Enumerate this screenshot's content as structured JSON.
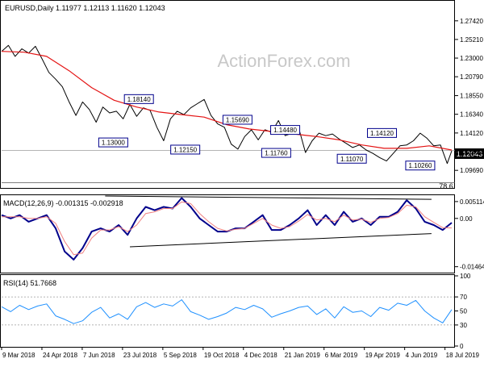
{
  "chart_data": {
    "type": "line",
    "price_panel": {
      "header": "EURUSD,Daily  1.11977 1.12113 1.11620 1.12043",
      "watermark": "ActionForex.com",
      "ylim": [
        1.077,
        1.2855
      ],
      "yticks": [
        "1.27420",
        "1.25210",
        "1.23000",
        "1.20790",
        "1.18550",
        "1.16340",
        "1.14120",
        "1.11910",
        "1.09690"
      ],
      "current_price": "1.12043",
      "current_value": 1.12043,
      "fib_label": "78.6",
      "fib_value": 1.0824,
      "series": [
        {
          "name": "Price",
          "x": [
            0,
            0.015,
            0.03,
            0.045,
            0.06,
            0.075,
            0.09,
            0.105,
            0.12,
            0.135,
            0.15,
            0.165,
            0.18,
            0.195,
            0.21,
            0.225,
            0.24,
            0.255,
            0.27,
            0.285,
            0.3,
            0.315,
            0.33,
            0.345,
            0.36,
            0.375,
            0.39,
            0.405,
            0.42,
            0.435,
            0.45,
            0.465,
            0.48,
            0.495,
            0.51,
            0.525,
            0.54,
            0.555,
            0.57,
            0.585,
            0.6,
            0.615,
            0.63,
            0.645,
            0.66,
            0.675,
            0.69,
            0.705,
            0.72,
            0.735,
            0.75,
            0.765,
            0.78,
            0.795,
            0.81,
            0.825,
            0.84,
            0.855,
            0.87,
            0.885,
            0.9,
            0.915,
            0.93,
            0.945,
            0.96,
            0.975,
            0.99,
            1.0
          ],
          "values": [
            1.238,
            1.245,
            1.232,
            1.241,
            1.236,
            1.244,
            1.229,
            1.213,
            1.205,
            1.196,
            1.178,
            1.162,
            1.178,
            1.169,
            1.154,
            1.172,
            1.165,
            1.167,
            1.158,
            1.175,
            1.161,
            1.171,
            1.168,
            1.148,
            1.132,
            1.158,
            1.167,
            1.163,
            1.171,
            1.176,
            1.181,
            1.162,
            1.152,
            1.148,
            1.128,
            1.122,
            1.137,
            1.145,
            1.133,
            1.145,
            1.142,
            1.156,
            1.138,
            1.141,
            1.147,
            1.118,
            1.132,
            1.141,
            1.138,
            1.14,
            1.134,
            1.129,
            1.124,
            1.127,
            1.121,
            1.117,
            1.112,
            1.108,
            1.117,
            1.126,
            1.127,
            1.132,
            1.141,
            1.135,
            1.126,
            1.127,
            1.105,
            1.12
          ]
        },
        {
          "name": "MA",
          "x": [
            0,
            0.05,
            0.1,
            0.15,
            0.2,
            0.25,
            0.3,
            0.35,
            0.4,
            0.45,
            0.5,
            0.55,
            0.6,
            0.65,
            0.7,
            0.75,
            0.8,
            0.85,
            0.9,
            0.95,
            1.0
          ],
          "values": [
            1.238,
            1.237,
            1.232,
            1.215,
            1.195,
            1.18,
            1.172,
            1.166,
            1.163,
            1.16,
            1.151,
            1.146,
            1.143,
            1.14,
            1.137,
            1.133,
            1.127,
            1.123,
            1.123,
            1.126,
            1.121
          ]
        }
      ],
      "annotations": [
        {
          "text": "1.18140",
          "x": 0.305,
          "y": 1.1814
        },
        {
          "text": "1.13000",
          "x": 0.248,
          "y": 1.13
        },
        {
          "text": "1.12150",
          "x": 0.408,
          "y": 1.1215
        },
        {
          "text": "1.15690",
          "x": 0.524,
          "y": 1.1569
        },
        {
          "text": "1.14480",
          "x": 0.63,
          "y": 1.1448
        },
        {
          "text": "1.11760",
          "x": 0.61,
          "y": 1.1176
        },
        {
          "text": "1.11070",
          "x": 0.778,
          "y": 1.1107
        },
        {
          "text": "1.14120",
          "x": 0.845,
          "y": 1.1412
        },
        {
          "text": "1.10260",
          "x": 0.93,
          "y": 1.1026
        }
      ]
    },
    "macd_panel": {
      "header": "MACD(12,26,9) -0.001315 -0.002918",
      "ylim": [
        -0.0162,
        0.0068
      ],
      "yticks": [
        "0.005114",
        "0.00",
        "-0.014647"
      ],
      "series": [
        {
          "name": "MACD",
          "x": [
            0,
            0.02,
            0.04,
            0.06,
            0.08,
            0.1,
            0.12,
            0.14,
            0.16,
            0.18,
            0.2,
            0.22,
            0.24,
            0.26,
            0.28,
            0.3,
            0.32,
            0.34,
            0.36,
            0.38,
            0.4,
            0.42,
            0.44,
            0.46,
            0.48,
            0.5,
            0.52,
            0.54,
            0.56,
            0.58,
            0.6,
            0.62,
            0.64,
            0.66,
            0.68,
            0.7,
            0.72,
            0.74,
            0.76,
            0.78,
            0.8,
            0.82,
            0.84,
            0.86,
            0.88,
            0.9,
            0.92,
            0.94,
            0.96,
            0.98,
            1.0
          ],
          "values": [
            0.001,
            0.0,
            0.001,
            -0.001,
            0.0,
            0.001,
            -0.003,
            -0.01,
            -0.0125,
            -0.009,
            -0.004,
            -0.003,
            -0.004,
            -0.002,
            -0.005,
            0.0,
            0.0035,
            0.0025,
            0.0035,
            0.003,
            0.0062,
            0.0035,
            0.0,
            -0.002,
            -0.004,
            -0.004,
            -0.003,
            -0.003,
            -0.001,
            0.001,
            -0.0035,
            -0.0035,
            -0.002,
            0.0,
            0.0025,
            -0.002,
            0.001,
            -0.002,
            0.002,
            -0.001,
            0.0,
            -0.002,
            0.0005,
            0.0005,
            0.002,
            0.0055,
            0.003,
            -0.001,
            -0.002,
            -0.0035,
            -0.0013
          ]
        },
        {
          "name": "Signal",
          "x": [
            0,
            0.02,
            0.04,
            0.06,
            0.08,
            0.1,
            0.12,
            0.14,
            0.16,
            0.18,
            0.2,
            0.22,
            0.24,
            0.26,
            0.28,
            0.3,
            0.32,
            0.34,
            0.36,
            0.38,
            0.4,
            0.42,
            0.44,
            0.46,
            0.48,
            0.5,
            0.52,
            0.54,
            0.56,
            0.58,
            0.6,
            0.62,
            0.64,
            0.66,
            0.68,
            0.7,
            0.72,
            0.74,
            0.76,
            0.78,
            0.8,
            0.82,
            0.84,
            0.86,
            0.88,
            0.9,
            0.92,
            0.94,
            0.96,
            0.98,
            1.0
          ],
          "values": [
            0.0005,
            0.0005,
            0.0005,
            0.0,
            0.0,
            0.0005,
            -0.0015,
            -0.007,
            -0.011,
            -0.0105,
            -0.006,
            -0.0035,
            -0.0035,
            -0.0025,
            -0.004,
            -0.002,
            0.0015,
            0.002,
            0.003,
            0.003,
            0.005,
            0.0045,
            0.0015,
            -0.001,
            -0.003,
            -0.0038,
            -0.0033,
            -0.003,
            -0.0015,
            0.0,
            -0.002,
            -0.003,
            -0.0025,
            -0.0008,
            0.0012,
            -0.0005,
            0.0,
            -0.001,
            0.001,
            -0.0005,
            -0.0002,
            -0.0012,
            0.0,
            0.0003,
            0.0015,
            0.004,
            0.0035,
            0.0005,
            -0.0012,
            -0.0028,
            -0.0029
          ]
        }
      ],
      "trendlines": [
        {
          "x1": 0.23,
          "y1": 0.0068,
          "x2": 0.955,
          "y2": 0.0058
        },
        {
          "x1": 0.285,
          "y1": -0.0086,
          "x2": 0.955,
          "y2": -0.0046
        }
      ]
    },
    "rsi_panel": {
      "header": "RSI(14) 51.7668",
      "ylim": [
        0,
        100
      ],
      "yticks": [
        "100",
        "70",
        "50",
        "30",
        "0"
      ],
      "guide_levels": [
        70,
        30
      ],
      "series": [
        {
          "name": "RSI",
          "x": [
            0,
            0.02,
            0.04,
            0.06,
            0.08,
            0.1,
            0.12,
            0.14,
            0.16,
            0.18,
            0.2,
            0.22,
            0.24,
            0.26,
            0.28,
            0.3,
            0.32,
            0.34,
            0.36,
            0.38,
            0.4,
            0.42,
            0.44,
            0.46,
            0.48,
            0.5,
            0.52,
            0.54,
            0.56,
            0.58,
            0.6,
            0.62,
            0.64,
            0.66,
            0.68,
            0.7,
            0.72,
            0.74,
            0.76,
            0.78,
            0.8,
            0.82,
            0.84,
            0.86,
            0.88,
            0.9,
            0.92,
            0.94,
            0.96,
            0.98,
            1.0
          ],
          "values": [
            56,
            49,
            58,
            52,
            57,
            60,
            43,
            38,
            32,
            36,
            48,
            55,
            40,
            46,
            38,
            56,
            62,
            55,
            60,
            57,
            66,
            49,
            44,
            38,
            42,
            47,
            55,
            52,
            58,
            53,
            41,
            46,
            50,
            55,
            57,
            45,
            53,
            40,
            56,
            48,
            50,
            42,
            55,
            51,
            61,
            58,
            65,
            50,
            40,
            33,
            52
          ]
        }
      ]
    },
    "x_axis": {
      "tick_labels": [
        "9 Mar 2018",
        "24 Apr 2018",
        "7 Jun 2018",
        "23 Jul 2018",
        "5 Sep 2018",
        "19 Oct 2018",
        "4 Dec 2018",
        "21 Jan 2019",
        "6 Mar 2019",
        "19 Apr 2019",
        "4 Jun 2019",
        "18 Jul 2019"
      ]
    },
    "colors": {
      "price": "#000000",
      "ma": "#e41414",
      "macd": "#00008b",
      "signal": "#f08080",
      "rsi": "#1e90ff",
      "label_box": "#00008b",
      "current_price_box": "#000000"
    }
  }
}
